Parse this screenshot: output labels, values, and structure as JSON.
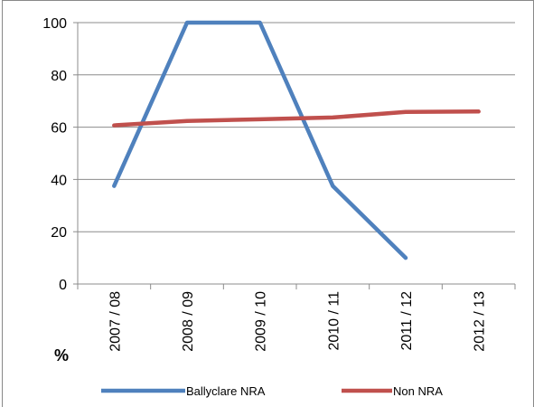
{
  "chart_data": {
    "type": "line",
    "categories": [
      "2007 / 08",
      "2008 / 09",
      "2009 / 10",
      "2010 / 11",
      "2011 / 12",
      "2012 / 13"
    ],
    "series": [
      {
        "name": "Ballyclare NRA",
        "values": [
          37.5,
          100,
          100,
          37.5,
          10,
          null
        ],
        "color": "#4F81BD"
      },
      {
        "name": "Non NRA",
        "values": [
          60.7,
          62.4,
          63.0,
          63.7,
          65.8,
          66.0
        ],
        "color": "#C0504D"
      }
    ],
    "ylabel": "%",
    "ylim": [
      0,
      100
    ],
    "yticks": [
      "0",
      "20",
      "40",
      "60",
      "80",
      "100"
    ],
    "grid": true,
    "legend": "bottom"
  }
}
